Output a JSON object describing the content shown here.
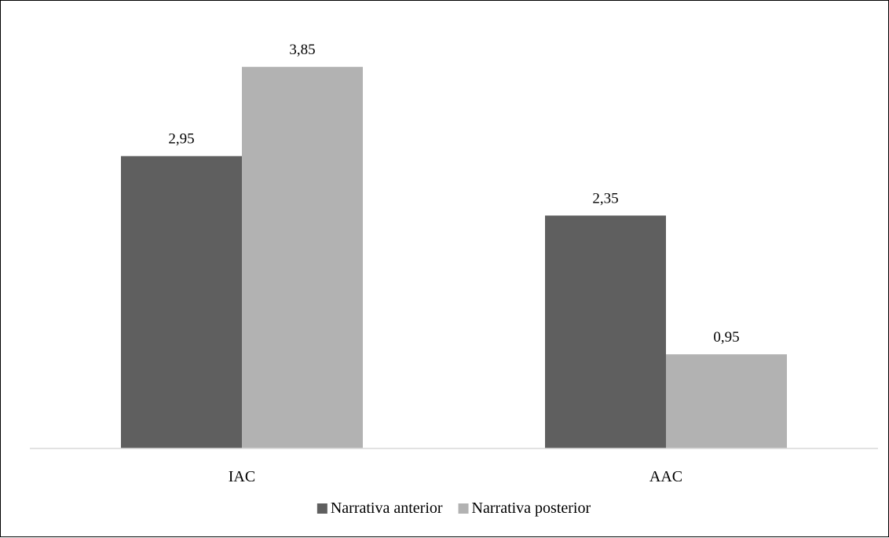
{
  "chart_data": {
    "type": "bar",
    "categories": [
      "IAC",
      "AAC"
    ],
    "series": [
      {
        "name": "Narrativa anterior",
        "values": [
          2.95,
          2.35
        ],
        "labels": [
          "2,95",
          "2,35"
        ],
        "color": "#5f5f5f"
      },
      {
        "name": "Narrativa posterior",
        "values": [
          3.85,
          0.95
        ],
        "labels": [
          "3,85",
          "0,95"
        ],
        "color": "#b2b2b2"
      }
    ],
    "ylim": [
      0,
      4.2
    ],
    "grid": false,
    "legend_position": "bottom",
    "axis_color": "#d9d9d9"
  }
}
